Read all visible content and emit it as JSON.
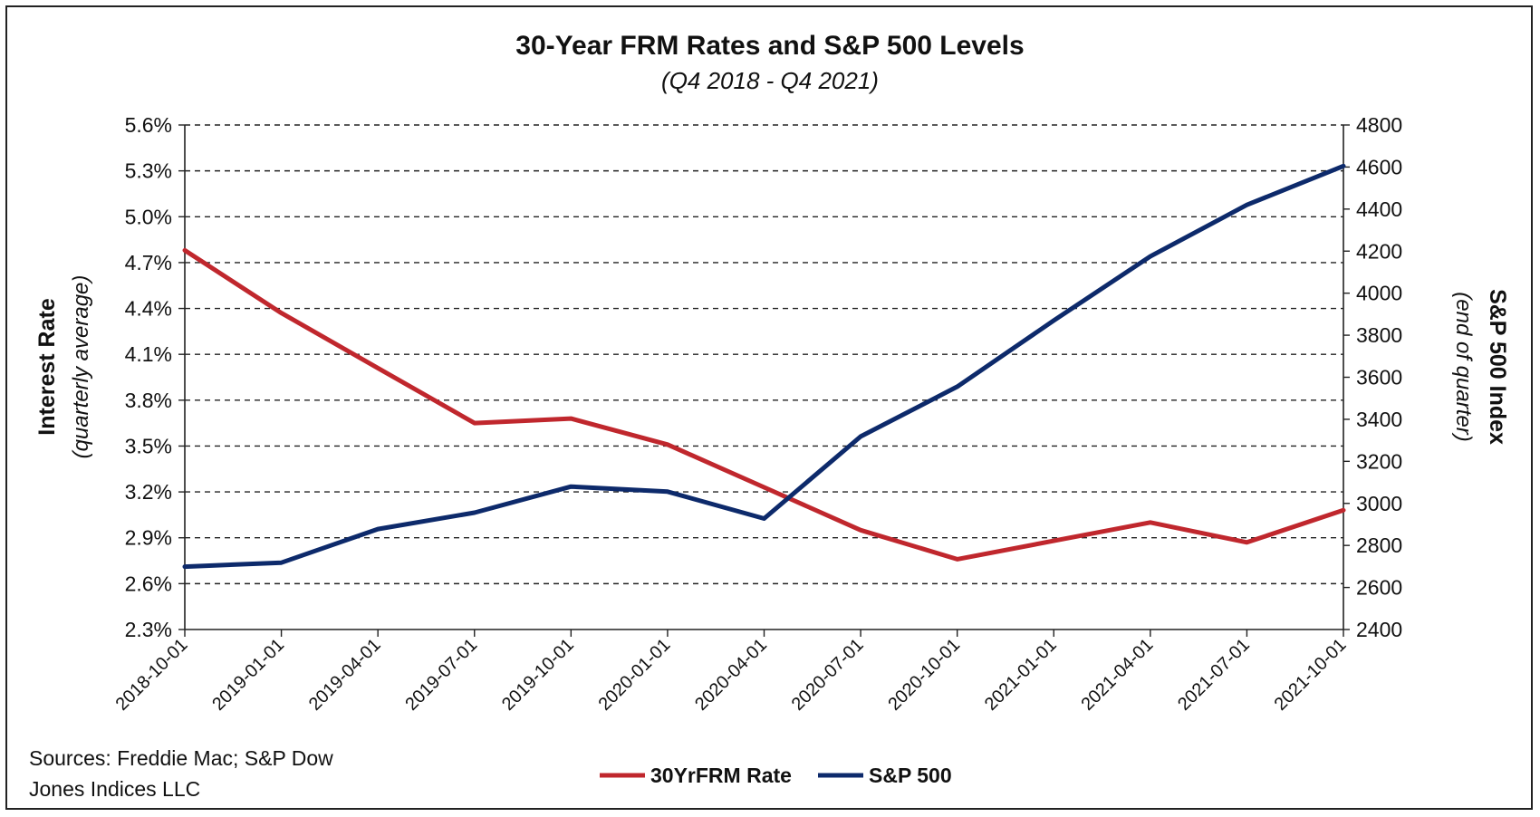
{
  "chart_data": {
    "type": "line",
    "title": "30-Year FRM Rates and S&P 500 Levels",
    "subtitle": "(Q4 2018 - Q4 2021)",
    "x": [
      "2018-10-01",
      "2019-01-01",
      "2019-04-01",
      "2019-07-01",
      "2019-10-01",
      "2020-01-01",
      "2020-04-01",
      "2020-07-01",
      "2020-10-01",
      "2021-01-01",
      "2021-04-01",
      "2021-07-01",
      "2021-10-01"
    ],
    "y_left": {
      "label": "Interest Rate",
      "sublabel": "(quarterly average)",
      "ylim": [
        2.3,
        5.6
      ],
      "ticks": [
        "2.3%",
        "2.6%",
        "2.9%",
        "3.2%",
        "3.5%",
        "3.8%",
        "4.1%",
        "4.4%",
        "4.7%",
        "5.0%",
        "5.3%",
        "5.6%"
      ]
    },
    "y_right": {
      "label": "S&P 500 Index",
      "sublabel": "(end of quarter)",
      "ylim": [
        2400,
        4800
      ],
      "ticks": [
        "2400",
        "2600",
        "2800",
        "3000",
        "3200",
        "3400",
        "3600",
        "3800",
        "4000",
        "4200",
        "4400",
        "4600",
        "4800"
      ]
    },
    "series": [
      {
        "name": "30YrFRM Rate",
        "axis": "left",
        "color": "#c0272d",
        "values": [
          4.78,
          4.37,
          4.01,
          3.65,
          3.68,
          3.51,
          3.23,
          2.95,
          2.76,
          2.88,
          3.0,
          2.87,
          3.08
        ]
      },
      {
        "name": "S&P 500",
        "axis": "right",
        "color": "#0d2a6b",
        "values": [
          2699,
          2718,
          2878,
          2956,
          3080,
          3056,
          2928,
          3318,
          3555,
          3870,
          4175,
          4420,
          4605
        ]
      }
    ],
    "grid": "horizontal-dashed",
    "legend": "bottom-center"
  },
  "source_text": [
    "Sources: Freddie Mac; S&P Dow",
    "Jones Indices LLC"
  ]
}
